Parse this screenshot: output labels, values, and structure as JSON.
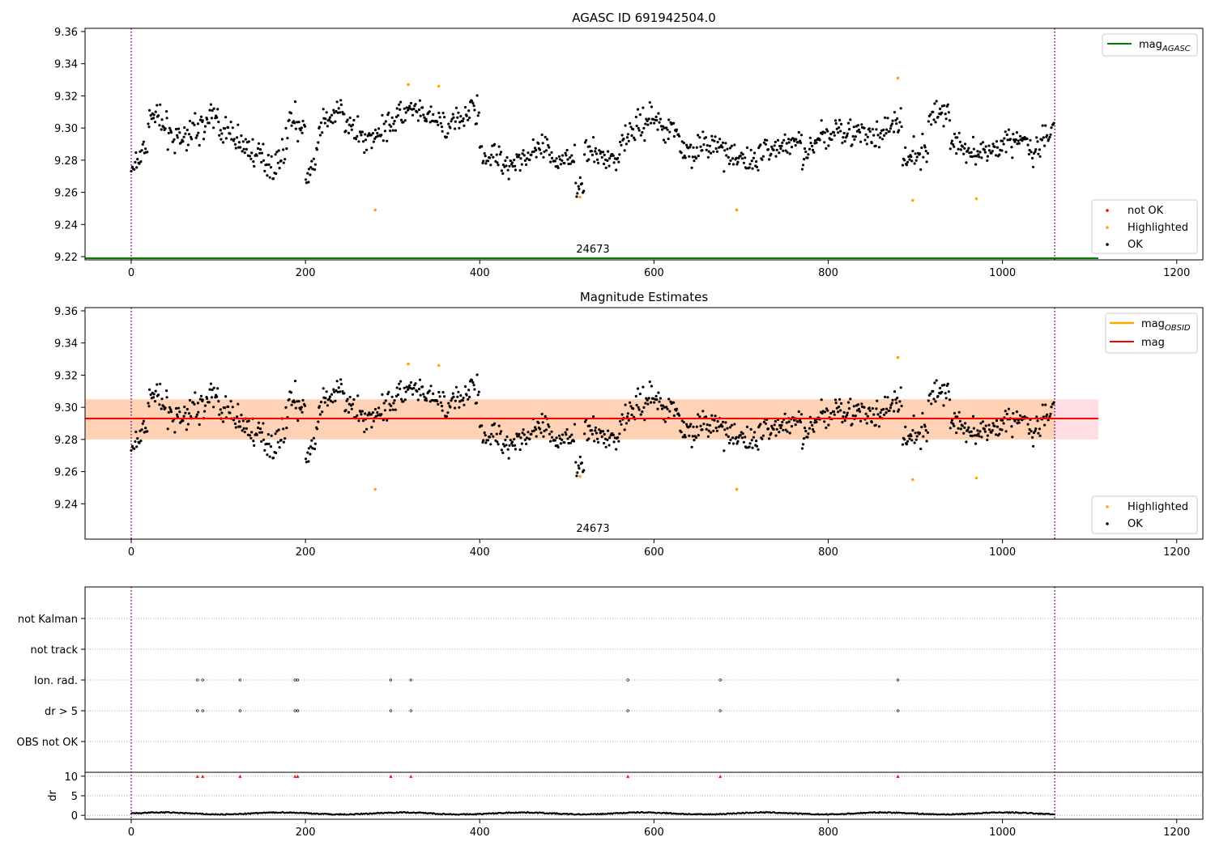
{
  "chart_data": [
    {
      "type": "scatter",
      "title": "AGASC ID 691942504.0",
      "xlim": [
        -53,
        1230
      ],
      "ylim": [
        9.218,
        9.362
      ],
      "x_ticks": [
        0,
        200,
        400,
        600,
        800,
        1000,
        1200
      ],
      "y_ticks": [
        9.22,
        9.24,
        9.26,
        9.28,
        9.3,
        9.32,
        9.34,
        9.36
      ],
      "vlines": [
        0,
        1060
      ],
      "obsid_label": "24673",
      "obsid_label_x": 530,
      "mag_agasc": 9.219,
      "legend_upper": [
        {
          "label": "mag",
          "sub": "AGASC",
          "color": "#008000"
        }
      ],
      "legend_lower": [
        {
          "label": "not OK",
          "color": "#ff0000"
        },
        {
          "label": "Highlighted",
          "color": "#ffa500"
        },
        {
          "label": "OK",
          "color": "#000000"
        }
      ],
      "segments": [
        {
          "x": [
            0,
            20
          ],
          "y": [
            9.272,
            9.292
          ]
        },
        {
          "x": [
            20,
            60
          ],
          "y": [
            9.311,
            9.288
          ]
        },
        {
          "x": [
            60,
            100
          ],
          "y": [
            9.296,
            9.307
          ]
        },
        {
          "x": [
            100,
            130
          ],
          "y": [
            9.301,
            9.29
          ]
        },
        {
          "x": [
            130,
            165
          ],
          "y": [
            9.288,
            9.276
          ]
        },
        {
          "x": [
            165,
            180
          ],
          "y": [
            9.276,
            9.293
          ]
        },
        {
          "x": [
            180,
            200
          ],
          "y": [
            9.31,
            9.296
          ]
        },
        {
          "x": [
            200,
            215
          ],
          "y": [
            9.268,
            9.285
          ]
        },
        {
          "x": [
            215,
            245
          ],
          "y": [
            9.3,
            9.312
          ]
        },
        {
          "x": [
            245,
            280
          ],
          "y": [
            9.302,
            9.29
          ]
        },
        {
          "x": [
            280,
            320
          ],
          "y": [
            9.298,
            9.312
          ]
        },
        {
          "x": [
            320,
            360
          ],
          "y": [
            9.31,
            9.302
          ]
        },
        {
          "x": [
            360,
            400
          ],
          "y": [
            9.298,
            9.315
          ]
        },
        {
          "x": [
            400,
            440
          ],
          "y": [
            9.285,
            9.278
          ]
        },
        {
          "x": [
            440,
            480
          ],
          "y": [
            9.28,
            9.288
          ]
        },
        {
          "x": [
            480,
            510
          ],
          "y": [
            9.278,
            9.284
          ]
        },
        {
          "x": [
            510,
            520
          ],
          "y": [
            9.263,
            9.263
          ]
        },
        {
          "x": [
            520,
            560
          ],
          "y": [
            9.285,
            9.28
          ]
        },
        {
          "x": [
            560,
            600
          ],
          "y": [
            9.292,
            9.308
          ]
        },
        {
          "x": [
            600,
            630
          ],
          "y": [
            9.305,
            9.296
          ]
        },
        {
          "x": [
            630,
            680
          ],
          "y": [
            9.286,
            9.29
          ]
        },
        {
          "x": [
            680,
            720
          ],
          "y": [
            9.282,
            9.279
          ]
        },
        {
          "x": [
            720,
            770
          ],
          "y": [
            9.286,
            9.292
          ]
        },
        {
          "x": [
            770,
            810
          ],
          "y": [
            9.284,
            9.3
          ]
        },
        {
          "x": [
            810,
            860
          ],
          "y": [
            9.301,
            9.292
          ]
        },
        {
          "x": [
            860,
            885
          ],
          "y": [
            9.298,
            9.305
          ]
        },
        {
          "x": [
            885,
            915
          ],
          "y": [
            9.278,
            9.285
          ]
        },
        {
          "x": [
            915,
            940
          ],
          "y": [
            9.306,
            9.313
          ]
        },
        {
          "x": [
            940,
            990
          ],
          "y": [
            9.29,
            9.283
          ]
        },
        {
          "x": [
            990,
            1030
          ],
          "y": [
            9.29,
            9.294
          ]
        },
        {
          "x": [
            1030,
            1060
          ],
          "y": [
            9.28,
            9.298
          ]
        }
      ],
      "highlighted": [
        {
          "x": 280,
          "y": 9.249
        },
        {
          "x": 318,
          "y": 9.327
        },
        {
          "x": 353,
          "y": 9.326
        },
        {
          "x": 515,
          "y": 9.257
        },
        {
          "x": 695,
          "y": 9.249
        },
        {
          "x": 880,
          "y": 9.331
        },
        {
          "x": 897,
          "y": 9.255
        },
        {
          "x": 970,
          "y": 9.256
        }
      ]
    },
    {
      "type": "scatter",
      "title": "Magnitude Estimates",
      "xlim": [
        -53,
        1230
      ],
      "ylim": [
        9.218,
        9.362
      ],
      "x_ticks": [
        0,
        200,
        400,
        600,
        800,
        1000,
        1200
      ],
      "y_ticks": [
        9.24,
        9.26,
        9.28,
        9.3,
        9.32,
        9.34,
        9.36
      ],
      "vlines": [
        0,
        1060
      ],
      "obsid_label": "24673",
      "obsid_label_x": 530,
      "mag_obsid": 9.293,
      "mag": 9.293,
      "band_outer": [
        9.28,
        9.305
      ],
      "band_inner": [
        9.28,
        9.305
      ],
      "band_inner_x": [
        -53,
        1060
      ],
      "legend_upper": [
        {
          "label": "mag",
          "sub": "OBSID",
          "color": "#ffa500"
        },
        {
          "label": "mag",
          "sub": "",
          "color": "#ff0000"
        }
      ],
      "legend_lower": [
        {
          "label": "Highlighted",
          "color": "#ffa500"
        },
        {
          "label": "OK",
          "color": "#000000"
        }
      ]
    },
    {
      "type": "scatter",
      "xlim": [
        -53,
        1230
      ],
      "x_ticks": [
        0,
        200,
        400,
        600,
        800,
        1000,
        1200
      ],
      "vlines": [
        0,
        1060
      ],
      "flag_categories": [
        "not Kalman",
        "not track",
        "Ion. rad.",
        "dr > 5",
        "OBS not OK"
      ],
      "flag_events": [
        {
          "category": "Ion. rad.",
          "x": [
            76,
            82,
            125,
            188,
            191,
            298,
            321,
            570,
            676,
            880
          ]
        },
        {
          "category": "dr > 5",
          "x": [
            76,
            82,
            125,
            188,
            191,
            298,
            321,
            570,
            676,
            880
          ]
        }
      ],
      "dr_ylabel": "dr",
      "dr_ylim": [
        -1,
        11
      ],
      "dr_ticks": [
        0,
        5,
        10
      ],
      "dr_spikes": [
        76,
        82,
        125,
        188,
        191,
        298,
        321,
        570,
        676,
        880
      ]
    }
  ]
}
